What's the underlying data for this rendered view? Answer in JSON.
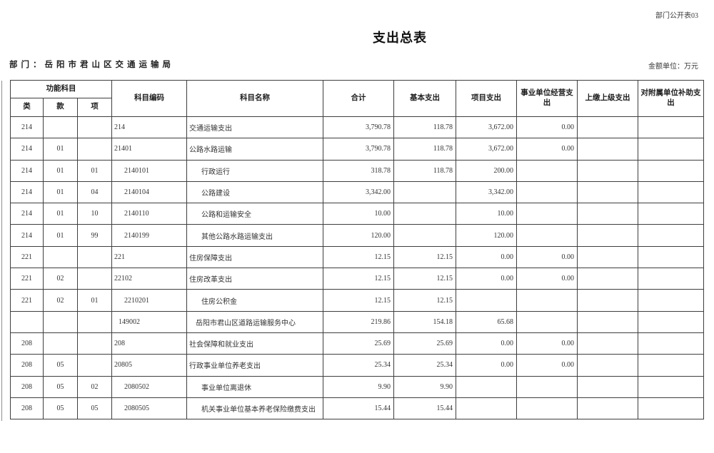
{
  "page": {
    "doc_tag": "部门公开表03",
    "title": "支出总表",
    "department_label": "部门：岳阳市君山区交通运输局",
    "unit_label": "金额单位：万元"
  },
  "table": {
    "header": {
      "func_group": "功能科目",
      "lei": "类",
      "kuan": "款",
      "xiang": "项",
      "code": "科目编码",
      "name": "科目名称",
      "total": "合计",
      "basic": "基本支出",
      "project": "项目支出",
      "operating": "事业单位经营支出",
      "upper": "上缴上级支出",
      "subsidy": "对附属单位补助支出"
    },
    "rows": [
      {
        "level": 0,
        "lei": "214",
        "kuan": "",
        "xiang": "",
        "code": "214",
        "name": "交通运输支出",
        "total": "3,790.78",
        "basic": "118.78",
        "project": "3,672.00",
        "operating": "0.00",
        "upper": "",
        "subsidy": ""
      },
      {
        "level": 0,
        "lei": "214",
        "kuan": "01",
        "xiang": "",
        "code": "21401",
        "name": "公路水路运输",
        "total": "3,790.78",
        "basic": "118.78",
        "project": "3,672.00",
        "operating": "0.00",
        "upper": "",
        "subsidy": ""
      },
      {
        "level": 2,
        "lei": "214",
        "kuan": "01",
        "xiang": "01",
        "code": "2140101",
        "name": "行政运行",
        "total": "318.78",
        "basic": "118.78",
        "project": "200.00",
        "operating": "",
        "upper": "",
        "subsidy": ""
      },
      {
        "level": 2,
        "lei": "214",
        "kuan": "01",
        "xiang": "04",
        "code": "2140104",
        "name": "公路建设",
        "total": "3,342.00",
        "basic": "",
        "project": "3,342.00",
        "operating": "",
        "upper": "",
        "subsidy": ""
      },
      {
        "level": 2,
        "lei": "214",
        "kuan": "01",
        "xiang": "10",
        "code": "2140110",
        "name": "公路和运输安全",
        "total": "10.00",
        "basic": "",
        "project": "10.00",
        "operating": "",
        "upper": "",
        "subsidy": ""
      },
      {
        "level": 2,
        "lei": "214",
        "kuan": "01",
        "xiang": "99",
        "code": "2140199",
        "name": "其他公路水路运输支出",
        "total": "120.00",
        "basic": "",
        "project": "120.00",
        "operating": "",
        "upper": "",
        "subsidy": ""
      },
      {
        "level": 0,
        "lei": "221",
        "kuan": "",
        "xiang": "",
        "code": "221",
        "name": "住房保障支出",
        "total": "12.15",
        "basic": "12.15",
        "project": "0.00",
        "operating": "0.00",
        "upper": "",
        "subsidy": ""
      },
      {
        "level": 0,
        "lei": "221",
        "kuan": "02",
        "xiang": "",
        "code": "22102",
        "name": "住房改革支出",
        "total": "12.15",
        "basic": "12.15",
        "project": "0.00",
        "operating": "0.00",
        "upper": "",
        "subsidy": ""
      },
      {
        "level": 2,
        "lei": "221",
        "kuan": "02",
        "xiang": "01",
        "code": "2210201",
        "name": "住房公积金",
        "total": "12.15",
        "basic": "12.15",
        "project": "",
        "operating": "",
        "upper": "",
        "subsidy": ""
      },
      {
        "level": 1,
        "lei": "",
        "kuan": "",
        "xiang": "",
        "code": "149002",
        "name": "岳阳市君山区道路运输服务中心",
        "total": "219.86",
        "basic": "154.18",
        "project": "65.68",
        "operating": "",
        "upper": "",
        "subsidy": ""
      },
      {
        "level": 0,
        "lei": "208",
        "kuan": "",
        "xiang": "",
        "code": "208",
        "name": "社会保障和就业支出",
        "total": "25.69",
        "basic": "25.69",
        "project": "0.00",
        "operating": "0.00",
        "upper": "",
        "subsidy": ""
      },
      {
        "level": 0,
        "lei": "208",
        "kuan": "05",
        "xiang": "",
        "code": "20805",
        "name": "行政事业单位养老支出",
        "total": "25.34",
        "basic": "25.34",
        "project": "0.00",
        "operating": "0.00",
        "upper": "",
        "subsidy": ""
      },
      {
        "level": 2,
        "lei": "208",
        "kuan": "05",
        "xiang": "02",
        "code": "2080502",
        "name": "事业单位离退休",
        "total": "9.90",
        "basic": "9.90",
        "project": "",
        "operating": "",
        "upper": "",
        "subsidy": ""
      },
      {
        "level": 2,
        "lei": "208",
        "kuan": "05",
        "xiang": "05",
        "code": "2080505",
        "name": "机关事业单位基本养老保险缴费支出",
        "total": "15.44",
        "basic": "15.44",
        "project": "",
        "operating": "",
        "upper": "",
        "subsidy": ""
      }
    ]
  }
}
